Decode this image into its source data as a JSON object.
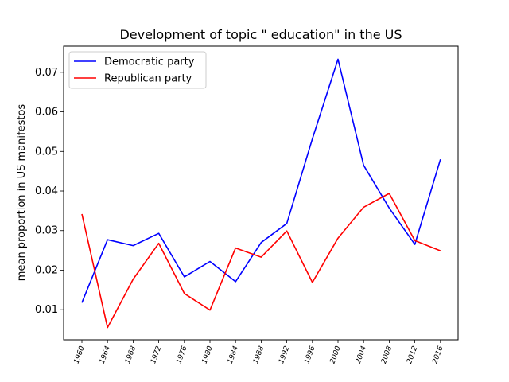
{
  "chart_data": {
    "type": "line",
    "title": "Development of topic \" education\" in the US",
    "xlabel": "",
    "ylabel": "mean proportion in US manifestos",
    "categories": [
      "1960",
      "1964",
      "1968",
      "1972",
      "1976",
      "1980",
      "1984",
      "1988",
      "1992",
      "1996",
      "2000",
      "2004",
      "2008",
      "2012",
      "2016"
    ],
    "y_ticks": [
      "0.01",
      "0.02",
      "0.03",
      "0.04",
      "0.05",
      "0.06",
      "0.07"
    ],
    "ylim": [
      0.0024,
      0.0766
    ],
    "grid": false,
    "legend_position": "upper left",
    "series": [
      {
        "name": "Democratic party",
        "color": "#0000ff",
        "values": [
          0.0118,
          0.0277,
          0.0262,
          0.0293,
          0.0183,
          0.0222,
          0.0171,
          0.027,
          0.0318,
          0.0532,
          0.0733,
          0.0465,
          0.0357,
          0.0265,
          0.048
        ]
      },
      {
        "name": "Republican party",
        "color": "#ff0000",
        "values": [
          0.0342,
          0.0055,
          0.0177,
          0.0268,
          0.0141,
          0.0099,
          0.0256,
          0.0233,
          0.0299,
          0.0169,
          0.0281,
          0.0359,
          0.0394,
          0.0275,
          0.0249
        ]
      }
    ]
  }
}
